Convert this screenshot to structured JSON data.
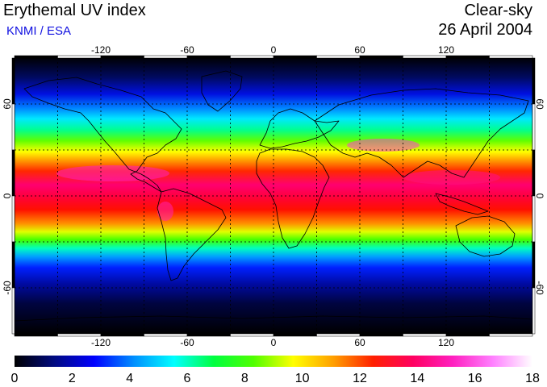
{
  "header": {
    "title": "Erythemal UV index",
    "credit": "KNMI / ESA",
    "mode": "Clear-sky",
    "date": "26 April 2004"
  },
  "map": {
    "lon_ticks_top": [
      "-120",
      "-60",
      "0",
      "60",
      "120"
    ],
    "lon_ticks_bottom": [
      "-120",
      "-60",
      "0",
      "60",
      "120"
    ],
    "lat_ticks_left": [
      "60",
      "0",
      "-60"
    ],
    "lat_ticks_right": [
      "60",
      "0",
      "-60"
    ],
    "colors": {
      "frame": "#000000",
      "gridline": "#000000",
      "coastline": "#000000"
    }
  },
  "colorbar": {
    "labels": [
      "0",
      "2",
      "4",
      "6",
      "8",
      "10",
      "12",
      "14",
      "16",
      "18"
    ],
    "stops": [
      "#000000",
      "#000a80",
      "#0000ff",
      "#0090ff",
      "#00ffff",
      "#00ff40",
      "#50ff00",
      "#ffff00",
      "#ffa000",
      "#ff2000",
      "#ff0060",
      "#ff20c0",
      "#ff80ff",
      "#ffffff"
    ]
  }
}
